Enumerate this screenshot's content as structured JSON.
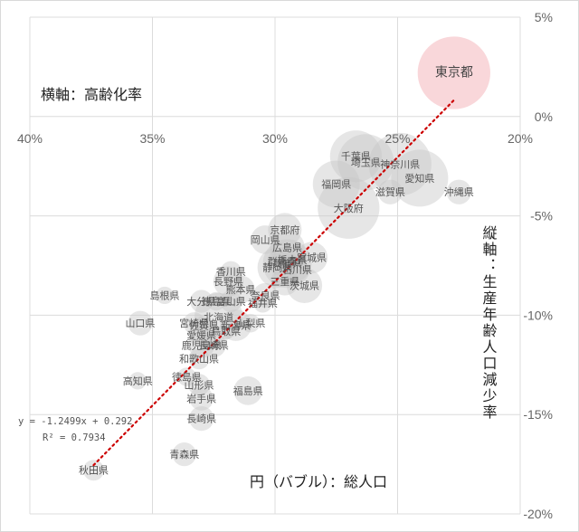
{
  "chart_data": {
    "type": "bubble",
    "xlabel": "横軸：高齢化率",
    "ylabel": "縦軸：生産年齢人口減少率",
    "size_label": "円（バブル）：総人口",
    "x_axis": {
      "reversed": true,
      "range": [
        0.2,
        0.4
      ],
      "ticks": [
        0.4,
        0.35,
        0.3,
        0.25,
        0.2
      ],
      "tick_labels": [
        "40%",
        "35%",
        "30%",
        "25%",
        "20%"
      ]
    },
    "y_axis": {
      "range": [
        -0.2,
        0.05
      ],
      "ticks": [
        0.05,
        0.0,
        -0.05,
        -0.1,
        -0.15,
        -0.2
      ],
      "tick_labels": [
        "5%",
        "0%",
        "-5%",
        "-10%",
        "-15%",
        "-20%"
      ]
    },
    "grid": true,
    "trendline": {
      "slope": -1.2499,
      "intercept": 0.292,
      "equation": "y = -1.2499x + 0.292",
      "r2": "R² = 0.7934",
      "color": "#cc0000"
    },
    "colors": {
      "bubble": "#c8c8c8",
      "tokyo": "#f4b6bb"
    },
    "points": [
      {
        "name": "東京都",
        "x": 0.227,
        "y": 0.022,
        "population": 13.5
      },
      {
        "name": "千葉県",
        "x": 0.267,
        "y": -0.02,
        "population": 6.2
      },
      {
        "name": "埼玉県",
        "x": 0.263,
        "y": -0.023,
        "population": 7.3
      },
      {
        "name": "神奈川県",
        "x": 0.249,
        "y": -0.024,
        "population": 9.1
      },
      {
        "name": "愛知県",
        "x": 0.241,
        "y": -0.031,
        "population": 7.5
      },
      {
        "name": "福岡県",
        "x": 0.275,
        "y": -0.034,
        "population": 5.1
      },
      {
        "name": "滋賀県",
        "x": 0.253,
        "y": -0.038,
        "population": 1.4
      },
      {
        "name": "大阪府",
        "x": 0.27,
        "y": -0.046,
        "population": 8.8
      },
      {
        "name": "沖縄県",
        "x": 0.225,
        "y": -0.038,
        "population": 1.4
      },
      {
        "name": "京都府",
        "x": 0.296,
        "y": -0.057,
        "population": 2.6
      },
      {
        "name": "岡山県",
        "x": 0.304,
        "y": -0.062,
        "population": 1.9
      },
      {
        "name": "広島県",
        "x": 0.295,
        "y": -0.066,
        "population": 2.8
      },
      {
        "name": "群馬県",
        "x": 0.297,
        "y": -0.073,
        "population": 2.0
      },
      {
        "name": "栃木県",
        "x": 0.293,
        "y": -0.072,
        "population": 2.0
      },
      {
        "name": "宮城県",
        "x": 0.285,
        "y": -0.071,
        "population": 2.3
      },
      {
        "name": "兵庫県",
        "x": 0.295,
        "y": -0.074,
        "population": 5.5
      },
      {
        "name": "静岡県",
        "x": 0.299,
        "y": -0.076,
        "population": 3.7
      },
      {
        "name": "石川県",
        "x": 0.291,
        "y": -0.077,
        "population": 1.2
      },
      {
        "name": "香川県",
        "x": 0.318,
        "y": -0.078,
        "population": 1.0
      },
      {
        "name": "長野県",
        "x": 0.319,
        "y": -0.083,
        "population": 2.1
      },
      {
        "name": "三重県",
        "x": 0.296,
        "y": -0.083,
        "population": 1.8
      },
      {
        "name": "茨城県",
        "x": 0.288,
        "y": -0.085,
        "population": 2.9
      },
      {
        "name": "熊本県",
        "x": 0.314,
        "y": -0.087,
        "population": 1.8
      },
      {
        "name": "奈良県",
        "x": 0.304,
        "y": -0.09,
        "population": 1.4
      },
      {
        "name": "島根県",
        "x": 0.345,
        "y": -0.09,
        "population": 0.7
      },
      {
        "name": "大分県",
        "x": 0.33,
        "y": -0.093,
        "population": 1.2
      },
      {
        "name": "徳島県",
        "x": 0.324,
        "y": -0.093,
        "population": 0.8
      },
      {
        "name": "富山県",
        "x": 0.318,
        "y": -0.093,
        "population": 1.1
      },
      {
        "name": "福井県",
        "x": 0.305,
        "y": -0.094,
        "population": 0.8
      },
      {
        "name": "北海道",
        "x": 0.323,
        "y": -0.101,
        "population": 5.4
      },
      {
        "name": "山口県",
        "x": 0.355,
        "y": -0.104,
        "population": 1.4
      },
      {
        "name": "宮崎県",
        "x": 0.333,
        "y": -0.104,
        "population": 1.1
      },
      {
        "name": "新潟県",
        "x": 0.316,
        "y": -0.105,
        "population": 2.3
      },
      {
        "name": "山梨県",
        "x": 0.31,
        "y": -0.104,
        "population": 0.8
      },
      {
        "name": "佐賀県",
        "x": 0.329,
        "y": -0.105,
        "population": 0.8
      },
      {
        "name": "鳥取県",
        "x": 0.32,
        "y": -0.108,
        "population": 0.6
      },
      {
        "name": "愛媛県",
        "x": 0.33,
        "y": -0.11,
        "population": 1.4
      },
      {
        "name": "鹿児島県",
        "x": 0.33,
        "y": -0.115,
        "population": 1.6
      },
      {
        "name": "長崎県",
        "x": 0.325,
        "y": -0.115,
        "population": 1.4
      },
      {
        "name": "和歌山県",
        "x": 0.331,
        "y": -0.122,
        "population": 1.0
      },
      {
        "name": "徳島県",
        "x": 0.336,
        "y": -0.131,
        "population": 0.8
      },
      {
        "name": "高知県",
        "x": 0.356,
        "y": -0.133,
        "population": 0.7
      },
      {
        "name": "山形県",
        "x": 0.331,
        "y": -0.135,
        "population": 1.1
      },
      {
        "name": "岩手県",
        "x": 0.33,
        "y": -0.142,
        "population": 1.3
      },
      {
        "name": "福島県",
        "x": 0.311,
        "y": -0.138,
        "population": 1.9
      },
      {
        "name": "長崎県",
        "x": 0.33,
        "y": -0.152,
        "population": 1.4
      },
      {
        "name": "青森県",
        "x": 0.337,
        "y": -0.17,
        "population": 1.3
      },
      {
        "name": "秋田県",
        "x": 0.374,
        "y": -0.178,
        "population": 1.0
      }
    ]
  }
}
